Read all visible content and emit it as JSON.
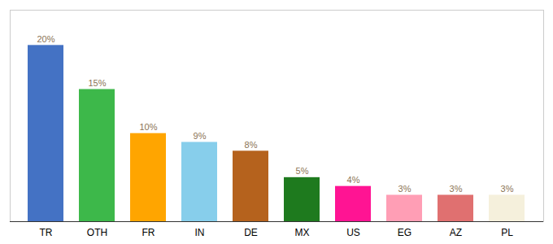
{
  "chart_data": {
    "type": "bar",
    "categories": [
      "TR",
      "OTH",
      "FR",
      "IN",
      "DE",
      "MX",
      "US",
      "EG",
      "AZ",
      "PL"
    ],
    "values": [
      20,
      15,
      10,
      9,
      8,
      5,
      4,
      3,
      3,
      3
    ],
    "value_labels": [
      "20%",
      "15%",
      "10%",
      "9%",
      "8%",
      "5%",
      "4%",
      "3%",
      "3%",
      "3%"
    ],
    "colors": [
      "#4472c4",
      "#3db84a",
      "#ffa500",
      "#87ceeb",
      "#b5621d",
      "#1e7a1e",
      "#ff1493",
      "#ff9eb5",
      "#e07070",
      "#f5f0dc"
    ],
    "ylim": [
      0,
      24
    ],
    "data_labels": true,
    "tick_labels": "x",
    "grid": false
  }
}
